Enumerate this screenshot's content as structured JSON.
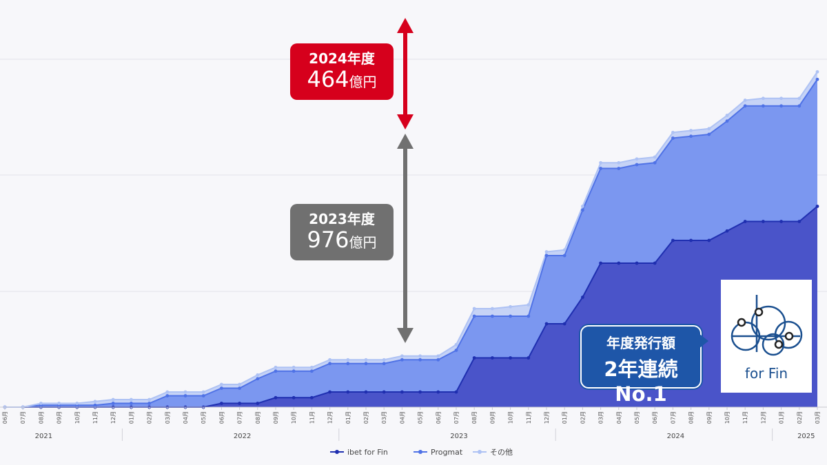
{
  "chart_data": {
    "type": "area",
    "stacked": true,
    "grid": true,
    "legend_position": "bottom",
    "x_month_labels": [
      "06月",
      "07月",
      "08月",
      "09月",
      "10月",
      "11月",
      "12月",
      "01月",
      "02月",
      "03月",
      "04月",
      "05月",
      "06月",
      "07月",
      "08月",
      "09月",
      "10月",
      "11月",
      "12月",
      "01月",
      "02月",
      "03月",
      "04月",
      "05月",
      "06月",
      "07月",
      "08月",
      "09月",
      "10月",
      "11月",
      "12月",
      "01月",
      "02月",
      "03月",
      "04月",
      "05月",
      "06月",
      "07月",
      "08月",
      "09月",
      "10月",
      "11月",
      "12月",
      "01月",
      "02月",
      "03月"
    ],
    "x_year_labels": [
      {
        "label": "2021",
        "index": 2
      },
      {
        "label": "2022",
        "index": 13
      },
      {
        "label": "2023",
        "index": 25
      },
      {
        "label": "2024",
        "index": 37
      },
      {
        "label": "2025",
        "index": 44
      }
    ],
    "series": [
      {
        "name": "ibet for Fin",
        "color": "#4a54c9",
        "line_color": "#1f2fb0",
        "values": [
          0,
          0,
          0,
          0,
          0,
          0,
          0,
          0,
          0,
          0,
          0,
          0,
          2,
          2,
          2,
          5,
          5,
          5,
          8,
          8,
          8,
          8,
          8,
          8,
          8,
          8,
          26,
          26,
          26,
          26,
          44,
          44,
          58,
          76,
          76,
          76,
          76,
          88,
          88,
          88,
          93,
          98,
          98,
          98,
          98,
          106
        ]
      },
      {
        "name": "Progmat",
        "color": "#7b97f0",
        "line_color": "#4f72e6",
        "values": [
          0,
          0,
          1,
          1,
          1,
          1,
          2,
          2,
          2,
          6,
          6,
          6,
          8,
          8,
          13,
          14,
          14,
          14,
          15,
          15,
          15,
          15,
          17,
          17,
          17,
          22,
          22,
          22,
          22,
          22,
          36,
          36,
          46,
          50,
          50,
          52,
          53,
          54,
          55,
          56,
          58,
          61,
          61,
          61,
          61,
          67
        ]
      },
      {
        "name": "その他",
        "color": "#c6d3f6",
        "line_color": "#aec2f4",
        "values": [
          0,
          0,
          1,
          1,
          1,
          2,
          2,
          2,
          2,
          2,
          2,
          2,
          2,
          2,
          2,
          2,
          2,
          2,
          2,
          2,
          2,
          2,
          2,
          2,
          2,
          3,
          4,
          4,
          5,
          6,
          2,
          3,
          2,
          3,
          3,
          3,
          3,
          3,
          3,
          3,
          3,
          3,
          4,
          4,
          4,
          4
        ]
      }
    ]
  },
  "callouts": {
    "fy2024": {
      "label": "2024年度",
      "num": "464",
      "unit": "億円",
      "color": "#d6001c"
    },
    "fy2023": {
      "label": "2023年度",
      "num": "976",
      "unit": "億円",
      "color": "#707070"
    }
  },
  "badge": {
    "line1": "年度発行額",
    "line2": "2年連続No.1"
  },
  "logo": {
    "text": "for Fin"
  }
}
